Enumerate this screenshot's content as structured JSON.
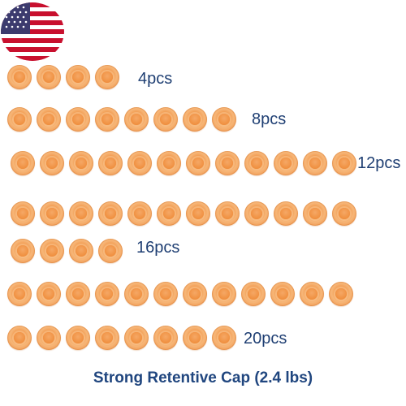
{
  "colors": {
    "cap_orange": "#f29a4f",
    "label_blue": "#1f3f73",
    "title_blue": "#20467f"
  },
  "flag": {
    "icon": "us-flag-icon"
  },
  "groups": [
    {
      "label": "4pcs",
      "count": 4
    },
    {
      "label": "8pcs",
      "count": 8
    },
    {
      "label": "12pcs",
      "count": 12
    },
    {
      "label": "16pcs",
      "count": 16
    },
    {
      "label": "20pcs",
      "count": 20
    }
  ],
  "title": "Strong Retentive Cap (2.4 lbs)"
}
